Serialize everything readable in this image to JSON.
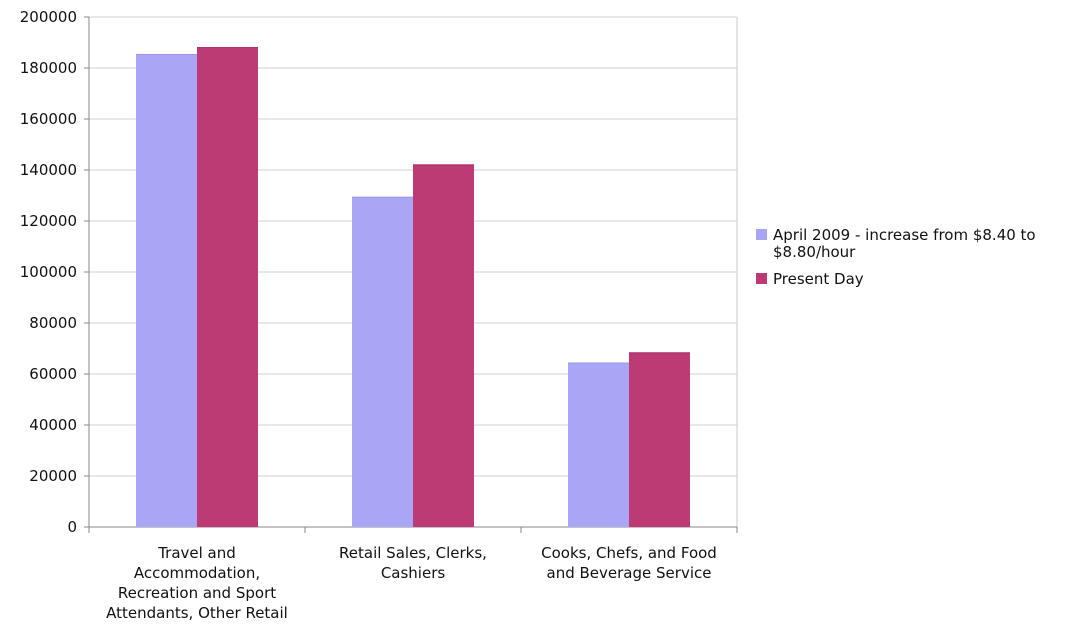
{
  "chart_data": {
    "type": "bar",
    "title": "",
    "xlabel": "",
    "ylabel": "",
    "ylim": [
      0,
      200000
    ],
    "yticks": [
      0,
      20000,
      40000,
      60000,
      80000,
      100000,
      120000,
      140000,
      160000,
      180000,
      200000
    ],
    "grid": true,
    "legend_position": "right",
    "categories": [
      [
        "Travel and",
        "Accommodation,",
        "Recreation and Sport",
        "Attendants, Other Retail"
      ],
      [
        "Retail Sales, Clerks,",
        "Cashiers"
      ],
      [
        "Cooks, Chefs, and Food",
        "and Beverage Service"
      ]
    ],
    "series": [
      {
        "name": [
          "April 2009 -  increase from $8.40 to",
          "$8.80/hour"
        ],
        "color": "#aaa6f6",
        "values": [
          185500,
          129500,
          64500
        ]
      },
      {
        "name": [
          "Present Day"
        ],
        "color": "#bd3b74",
        "values": [
          188200,
          142200,
          68500
        ]
      }
    ]
  }
}
